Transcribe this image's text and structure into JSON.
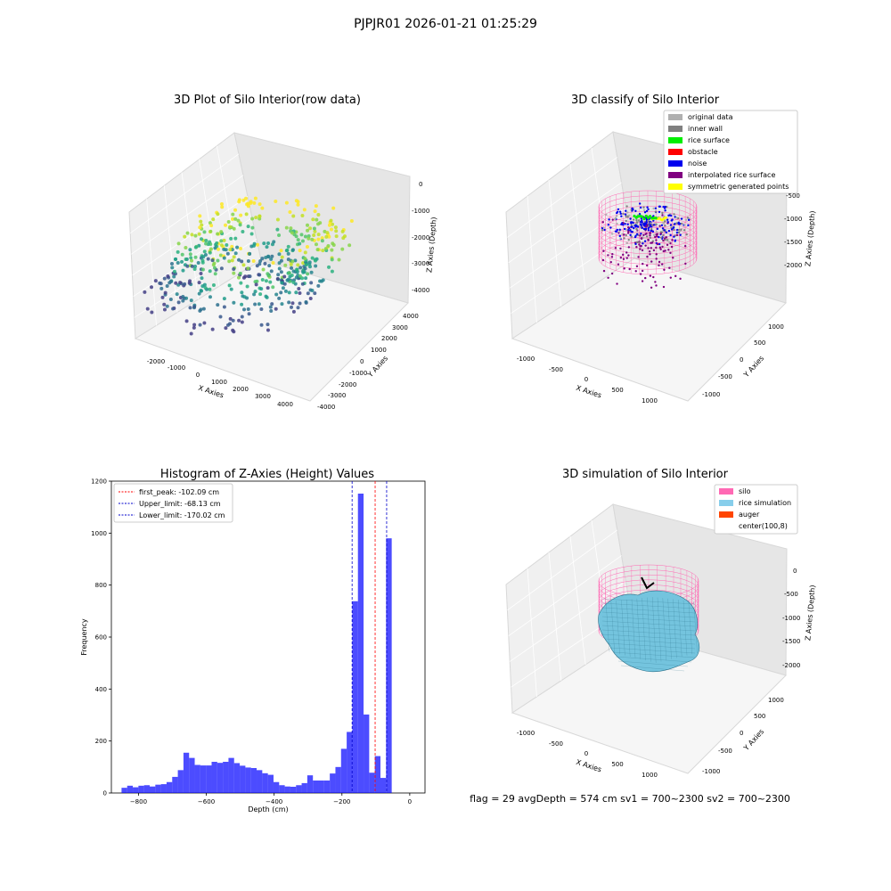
{
  "figure": {
    "suptitle": "PJPJR01 2026-01-21 01:25:29",
    "footer": "flag = 29  avgDepth = 574 cm  sv1 = 700~2300  sv2 = 700~2300"
  },
  "panels": {
    "raw": {
      "title": "3D Plot of Silo Interior(row data)",
      "xlabel": "X Axies",
      "ylabel": "Y Axies",
      "zlabel": "Z Axies (Depth)",
      "xticks": [
        "-2000",
        "-1000",
        "0",
        "1000",
        "2000",
        "3000",
        "4000"
      ],
      "yticks": [
        "4000",
        "3000",
        "2000",
        "1000",
        "0",
        "-1000",
        "-2000",
        "-3000",
        "-4000"
      ],
      "zticks": [
        "0",
        "-1000",
        "-2000",
        "-3000",
        "-4000"
      ]
    },
    "classify": {
      "title": "3D classify of Silo Interior",
      "xlabel": "X Axies",
      "ylabel": "Y Axies",
      "zlabel": "Z Axies (Depth)",
      "xticks": [
        "-1000",
        "-500",
        "0",
        "500",
        "1000"
      ],
      "yticks": [
        "1000",
        "500",
        "0",
        "-500",
        "-1000"
      ],
      "zticks": [
        "-500",
        "-1000",
        "-1500",
        "-2000"
      ],
      "legend": [
        {
          "label": "original data",
          "color": "#b0b0b0"
        },
        {
          "label": "inner wall",
          "color": "#808080"
        },
        {
          "label": "rice surface",
          "color": "#00ee00"
        },
        {
          "label": "obstacle",
          "color": "#ff0000"
        },
        {
          "label": "noise",
          "color": "#0000ee"
        },
        {
          "label": "interpolated rice surface",
          "color": "#800080"
        },
        {
          "label": "symmetric generated points",
          "color": "#ffff00"
        }
      ]
    },
    "simulation": {
      "title": "3D simulation of Silo Interior",
      "xlabel": "X Axies",
      "ylabel": "Y Axies",
      "zlabel": "Z Axies (Depth)",
      "xticks": [
        "-1000",
        "-500",
        "0",
        "500",
        "1000"
      ],
      "yticks": [
        "1000",
        "500",
        "0",
        "-500",
        "-1000"
      ],
      "zticks": [
        "0",
        "-500",
        "-1000",
        "-1500",
        "-2000"
      ],
      "legend": [
        {
          "label": "silo",
          "color": "#ff69b4"
        },
        {
          "label": "rice simulation",
          "color": "#87ceeb"
        },
        {
          "label": "auger",
          "color": "#ff4500"
        },
        {
          "label": "center(100,8)",
          "color": ""
        }
      ]
    }
  },
  "chart_data": {
    "type": "bar",
    "title": "Histogram of Z-Axies (Height) Values",
    "xlabel": "Depth (cm)",
    "ylabel": "Frequency",
    "xlim": [
      -880,
      45
    ],
    "ylim": [
      0,
      1200
    ],
    "xticks": [
      -800,
      -600,
      -400,
      -200,
      0
    ],
    "yticks": [
      0,
      200,
      400,
      600,
      800,
      1000,
      1200
    ],
    "bin_width": 16.6,
    "bin_start": -850,
    "values": [
      20,
      28,
      22,
      28,
      30,
      25,
      32,
      34,
      42,
      62,
      88,
      155,
      135,
      108,
      106,
      106,
      120,
      116,
      120,
      135,
      115,
      105,
      98,
      96,
      88,
      76,
      70,
      42,
      30,
      25,
      24,
      30,
      38,
      68,
      48,
      48,
      48,
      75,
      100,
      170,
      235,
      738,
      1152,
      302,
      78,
      142,
      58,
      980
    ],
    "color": "#0000ff",
    "lines": [
      {
        "label": "first_peak: -102.09 cm",
        "value": -102.09,
        "color": "#ff0000"
      },
      {
        "label": "Upper_limit: -68.13 cm",
        "value": -68.13,
        "color": "#0000cc"
      },
      {
        "label": "Lower_limit: -170.02 cm",
        "value": -170.02,
        "color": "#0000cc"
      }
    ],
    "legend_position": "upper-left"
  }
}
